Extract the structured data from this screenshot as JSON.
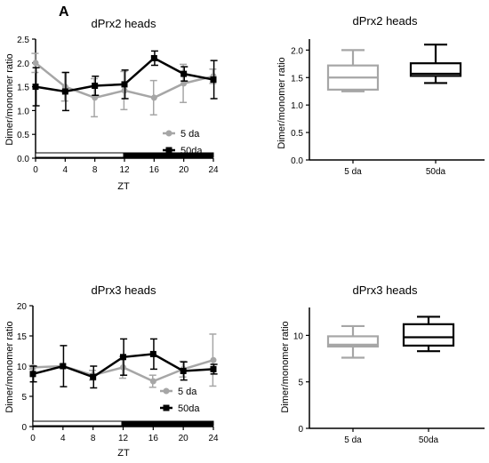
{
  "panel_label": "A",
  "colors": {
    "series_5da": "#a6a6a6",
    "series_50da": "#000000",
    "axis": "#000000"
  },
  "chart_data": [
    {
      "id": "prx2-line",
      "type": "line",
      "title": "dPrx2 heads",
      "xlabel": "ZT",
      "ylabel": "Dimer/monomer ratio",
      "x": [
        0,
        4,
        8,
        12,
        16,
        20,
        24
      ],
      "xticks": [
        "0",
        "4",
        "8",
        "12",
        "16",
        "20",
        "24"
      ],
      "xlim": [
        0,
        24
      ],
      "ylim": [
        0,
        2.5
      ],
      "yticks": [
        "0.0",
        "0.5",
        "1.0",
        "1.5",
        "2.0",
        "2.5"
      ],
      "ytick_values": [
        0,
        0.5,
        1.0,
        1.5,
        2.0,
        2.5
      ],
      "legend_placement": "lower-right",
      "light_dark_bar": {
        "light": [
          0,
          12
        ],
        "dark": [
          12,
          24
        ]
      },
      "series": [
        {
          "name": "5 da",
          "color": "#a6a6a6",
          "marker": "circle",
          "values": [
            2.0,
            1.5,
            1.27,
            1.42,
            1.27,
            1.57,
            1.72
          ],
          "errors": [
            0.2,
            0.3,
            0.4,
            0.4,
            0.36,
            0.4,
            0.15
          ]
        },
        {
          "name": "50da",
          "color": "#000000",
          "marker": "square",
          "values": [
            1.5,
            1.4,
            1.52,
            1.55,
            2.1,
            1.77,
            1.65
          ],
          "errors": [
            0.4,
            0.4,
            0.2,
            0.3,
            0.15,
            0.15,
            0.4
          ]
        }
      ]
    },
    {
      "id": "prx2-box",
      "type": "box",
      "title": "dPrx2 heads",
      "ylabel": "Dimer/monomer ratio",
      "categories": [
        "5 da",
        "50da"
      ],
      "ylim": [
        0,
        2.2
      ],
      "yticks": [
        "0.0",
        "0.5",
        "1.0",
        "1.5",
        "2.0"
      ],
      "ytick_values": [
        0,
        0.5,
        1.0,
        1.5,
        2.0
      ],
      "boxes": [
        {
          "category": "5 da",
          "color": "#a6a6a6",
          "min": 1.25,
          "q1": 1.28,
          "median": 1.5,
          "q3": 1.72,
          "max": 2.0
        },
        {
          "category": "50da",
          "color": "#000000",
          "min": 1.4,
          "q1": 1.53,
          "median": 1.57,
          "q3": 1.76,
          "max": 2.1
        }
      ]
    },
    {
      "id": "prx3-line",
      "type": "line",
      "title": "dPrx3 heads",
      "xlabel": "ZT",
      "ylabel": "Dimer/monomer ratio",
      "x": [
        0,
        4,
        8,
        12,
        16,
        20,
        24
      ],
      "xticks": [
        "0",
        "4",
        "8",
        "12",
        "16",
        "20",
        "24"
      ],
      "xlim": [
        0,
        24
      ],
      "ylim": [
        0,
        20
      ],
      "yticks": [
        "0",
        "5",
        "10",
        "15",
        "20"
      ],
      "ytick_values": [
        0,
        5,
        10,
        15,
        20
      ],
      "legend_placement": "lower-right",
      "light_dark_bar": {
        "light": [
          0,
          12
        ],
        "dark": [
          12,
          24
        ]
      },
      "series": [
        {
          "name": "5 da",
          "color": "#a6a6a6",
          "marker": "circle",
          "values": [
            9.8,
            10.0,
            8.5,
            9.8,
            7.5,
            9.5,
            11.0
          ],
          "errors": [
            0.3,
            0.3,
            0.8,
            1.8,
            1.0,
            1.3,
            4.3
          ]
        },
        {
          "name": "50da",
          "color": "#000000",
          "marker": "square",
          "values": [
            8.7,
            10.0,
            8.2,
            11.5,
            12.0,
            9.2,
            9.5
          ],
          "errors": [
            1.3,
            3.4,
            1.8,
            3.0,
            2.5,
            1.5,
            0.8
          ]
        }
      ]
    },
    {
      "id": "prx3-box",
      "type": "box",
      "title": "dPrx3 heads",
      "ylabel": "Dimer/monomer ratio",
      "categories": [
        "5 da",
        "50da"
      ],
      "ylim": [
        0,
        13
      ],
      "yticks": [
        "0",
        "5",
        "10"
      ],
      "ytick_values": [
        0,
        5,
        10
      ],
      "boxes": [
        {
          "category": "5 da",
          "color": "#a6a6a6",
          "min": 7.6,
          "q1": 8.8,
          "median": 9.0,
          "q3": 9.9,
          "max": 11.0
        },
        {
          "category": "50da",
          "color": "#000000",
          "min": 8.3,
          "q1": 8.9,
          "median": 9.8,
          "q3": 11.2,
          "max": 12.0
        }
      ]
    }
  ]
}
